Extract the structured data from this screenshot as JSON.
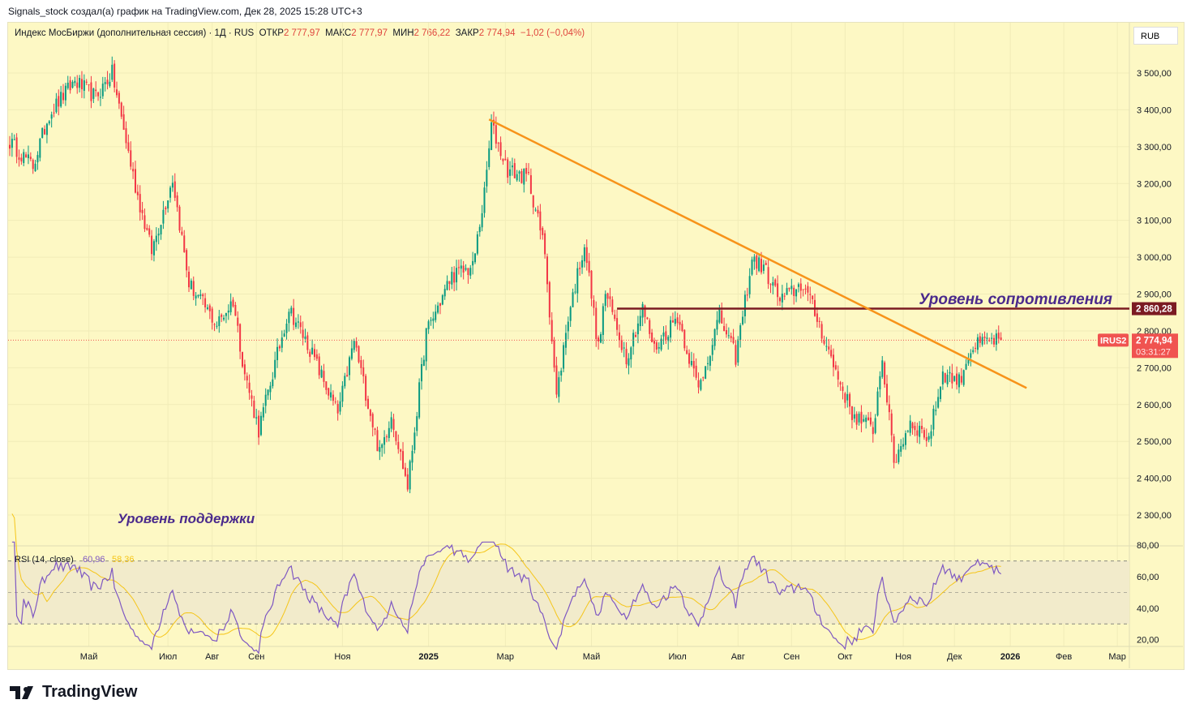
{
  "header": "Signals_stock создал(а) график на TradingView.com, Дек 28, 2025 15:28 UTC+3",
  "legend": {
    "symbol": "Индекс МосБиржи (дополнительная сессия) · 1Д · RUS",
    "open_label": "ОТКР",
    "open": "2 777,97",
    "high_label": "МАКС",
    "high": "2 777,97",
    "low_label": "МИН",
    "low": "2 766,22",
    "close_label": "ЗАКР",
    "close": "2 774,94",
    "change": "−1,02 (−0,04%)"
  },
  "currency": "RUB",
  "rsi_legend": {
    "label": "RSI (14, close)",
    "rsi": "60,96",
    "ma": "58,36"
  },
  "logo": "TradingView",
  "colors": {
    "up": "#089981",
    "down": "#f23645",
    "trend": "#f7931a",
    "resistance": "#7b1b22",
    "rsi": "#7e57c2",
    "rsi_ma": "#f5c518",
    "last": "#f05350"
  },
  "chart_data": {
    "type": "candlestick",
    "title": "Индекс МосБиржи (дополнительная сессия) · 1Д",
    "price_ticks": [
      "3 500,00",
      "3 400,00",
      "3 300,00",
      "3 200,00",
      "3 100,00",
      "3 000,00",
      "2 900,00",
      "2 800,00",
      "2 700,00",
      "2 600,00",
      "2 500,00",
      "2 400,00",
      "2 300,00"
    ],
    "price_tick_values": [
      3500,
      3400,
      3300,
      3200,
      3100,
      3000,
      2900,
      2800,
      2700,
      2600,
      2500,
      2400,
      2300
    ],
    "ylim": [
      2210,
      3640
    ],
    "rsi_ticks": [
      "80,00",
      "60,00",
      "40,00",
      "20,00"
    ],
    "rsi_tick_values": [
      80,
      60,
      40,
      20
    ],
    "time_ticks": [
      {
        "label": "Май",
        "i": 34
      },
      {
        "label": "Июл",
        "i": 68
      },
      {
        "label": "Авг",
        "i": 87
      },
      {
        "label": "Сен",
        "i": 106
      },
      {
        "label": "Ноя",
        "i": 143
      },
      {
        "label": "2025",
        "i": 180,
        "bold": true
      },
      {
        "label": "Мар",
        "i": 213
      },
      {
        "label": "Май",
        "i": 250
      },
      {
        "label": "Июл",
        "i": 287
      },
      {
        "label": "Авг",
        "i": 313
      },
      {
        "label": "Сен",
        "i": 336
      },
      {
        "label": "Окт",
        "i": 359
      },
      {
        "label": "Ноя",
        "i": 384
      },
      {
        "label": "Дек",
        "i": 406
      },
      {
        "label": "2026",
        "i": 430,
        "bold": true
      },
      {
        "label": "Фев",
        "i": 453
      },
      {
        "label": "Мар",
        "i": 476
      }
    ],
    "close_keypoints": [
      [
        0,
        3313
      ],
      [
        10,
        3247
      ],
      [
        17,
        3390
      ],
      [
        28,
        3478
      ],
      [
        37,
        3434
      ],
      [
        44,
        3500
      ],
      [
        49,
        3346
      ],
      [
        54,
        3192
      ],
      [
        61,
        3016
      ],
      [
        70,
        3214
      ],
      [
        77,
        2928
      ],
      [
        89,
        2817
      ],
      [
        96,
        2883
      ],
      [
        101,
        2685
      ],
      [
        107,
        2531
      ],
      [
        120,
        2862
      ],
      [
        129,
        2751
      ],
      [
        141,
        2575
      ],
      [
        148,
        2773
      ],
      [
        159,
        2465
      ],
      [
        164,
        2575
      ],
      [
        171,
        2377
      ],
      [
        179,
        2795
      ],
      [
        190,
        2950
      ],
      [
        199,
        2972
      ],
      [
        204,
        3170
      ],
      [
        207,
        3357
      ],
      [
        214,
        3236
      ],
      [
        223,
        3214
      ],
      [
        230,
        3016
      ],
      [
        235,
        2619
      ],
      [
        240,
        2840
      ],
      [
        247,
        3038
      ],
      [
        253,
        2751
      ],
      [
        256,
        2905
      ],
      [
        265,
        2729
      ],
      [
        272,
        2862
      ],
      [
        277,
        2751
      ],
      [
        287,
        2840
      ],
      [
        296,
        2641
      ],
      [
        305,
        2840
      ],
      [
        312,
        2729
      ],
      [
        319,
        2994
      ],
      [
        324,
        2972
      ],
      [
        331,
        2883
      ],
      [
        341,
        2928
      ],
      [
        348,
        2817
      ],
      [
        354,
        2707
      ],
      [
        362,
        2575
      ],
      [
        371,
        2531
      ],
      [
        375,
        2729
      ],
      [
        380,
        2443
      ],
      [
        387,
        2553
      ],
      [
        395,
        2509
      ],
      [
        401,
        2685
      ],
      [
        408,
        2663
      ],
      [
        413,
        2751
      ],
      [
        420,
        2773
      ],
      [
        426,
        2775
      ]
    ],
    "trendline": {
      "from": [
        206,
        3374
      ],
      "to": [
        437,
        2645
      ]
    },
    "resistance": {
      "value": 2860.28,
      "label": "2 860,28",
      "from_i": 261
    },
    "last_price": {
      "symbol": "IRUS2",
      "value": 2774.94,
      "label": "2 774,94",
      "countdown": "03:31:27"
    },
    "annotations": {
      "resistance": "Уровень сопротивления",
      "support": "Уровень поддержки"
    }
  }
}
